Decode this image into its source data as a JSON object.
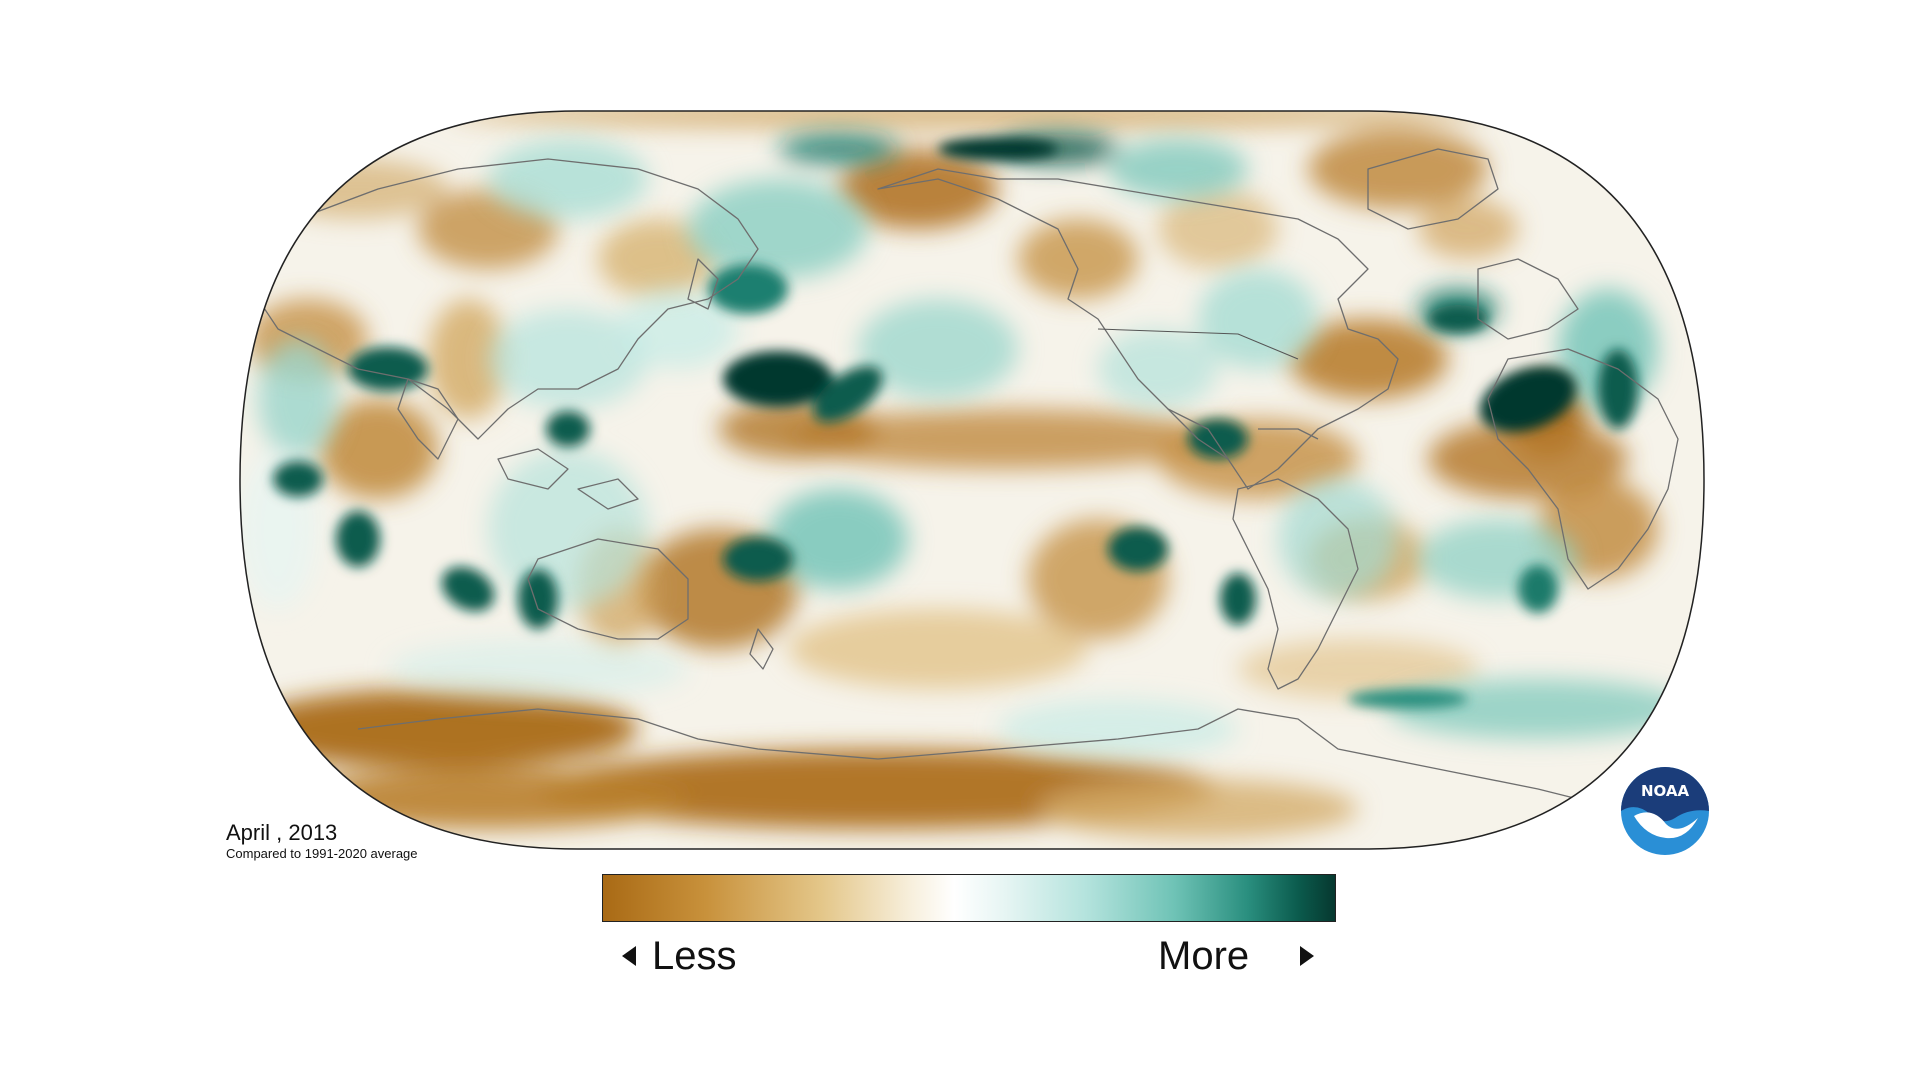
{
  "caption": {
    "date": "April , 2013",
    "subtitle": "Compared to 1991-2020 average"
  },
  "legend": {
    "less_label": "Less",
    "more_label": "More",
    "colors": [
      "#a96a15",
      "#c8913b",
      "#e4c78a",
      "#f7efdc",
      "#ffffff",
      "#e6f5f3",
      "#b4e3dd",
      "#6fc3b6",
      "#2a8f7f",
      "#0b5b4d",
      "#06382f"
    ]
  },
  "logo": {
    "text": "NOAA",
    "icon": "noaa-logo-icon",
    "colors": {
      "dark": "#1b3d7a",
      "light": "#2a8fd6",
      "bird": "#ffffff"
    }
  },
  "map": {
    "projection": "robinson",
    "ocean_fill": "#f5f9f8",
    "anomaly_dry": "#b7802f",
    "anomaly_wet": "#0b5b4d",
    "coastline_color": "#6e6e6e",
    "border_color": "#222222"
  }
}
